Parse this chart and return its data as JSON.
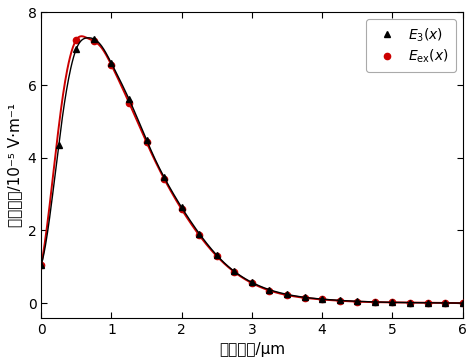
{
  "title": "",
  "xlabel": "有效深度/μm",
  "ylabel": "电场强度/10⁻⁵ V·m⁻¹",
  "xlim": [
    0,
    6
  ],
  "ylim": [
    -0.4,
    8
  ],
  "yticks": [
    0,
    2,
    4,
    6,
    8
  ],
  "xticks": [
    0,
    1,
    2,
    3,
    4,
    5,
    6
  ],
  "line1_color": "#000000",
  "line2_color": "#cc0000",
  "background_color": "#ffffff",
  "fig_color": "#ffffff",
  "xlabel_fontsize": 11,
  "ylabel_fontsize": 11,
  "legend_fontsize": 10,
  "xp_red": [
    0,
    0.15,
    0.3,
    0.5,
    0.65,
    0.85,
    1.0,
    1.3,
    1.6,
    1.9,
    2.2,
    2.6,
    3.0,
    3.5,
    4.0,
    4.5,
    5.0,
    5.5,
    6.0
  ],
  "yp_red": [
    1.05,
    3.2,
    5.6,
    7.25,
    7.3,
    7.05,
    6.55,
    5.3,
    4.0,
    2.9,
    2.0,
    1.1,
    0.55,
    0.22,
    0.1,
    0.04,
    0.02,
    0.01,
    0.0
  ],
  "xp_blk": [
    0,
    0.15,
    0.3,
    0.5,
    0.65,
    0.85,
    1.0,
    1.3,
    1.6,
    1.9,
    2.2,
    2.6,
    3.0,
    3.5,
    4.0,
    4.5,
    5.0,
    5.5,
    6.0
  ],
  "yp_blk": [
    1.05,
    2.8,
    5.1,
    7.0,
    7.3,
    7.1,
    6.6,
    5.4,
    4.05,
    2.95,
    2.05,
    1.12,
    0.57,
    0.24,
    0.11,
    0.05,
    0.02,
    0.01,
    0.0
  ],
  "x_tri": [
    0,
    0.25,
    0.5,
    0.75,
    1.0,
    1.25,
    1.5,
    1.75,
    2.0,
    2.25,
    2.5,
    2.75,
    3.0,
    3.25,
    3.5,
    3.75,
    4.0,
    4.25,
    4.5,
    4.75,
    5.0,
    5.25,
    5.5,
    5.75,
    6.0
  ],
  "x_circ": [
    0,
    0.5,
    0.75,
    1.0,
    1.25,
    1.5,
    1.75,
    2.0,
    2.25,
    2.5,
    2.75,
    3.0,
    3.25,
    3.5,
    3.75,
    4.0,
    4.25,
    4.5,
    4.75,
    5.0,
    5.25,
    5.5,
    5.75,
    6.0
  ]
}
